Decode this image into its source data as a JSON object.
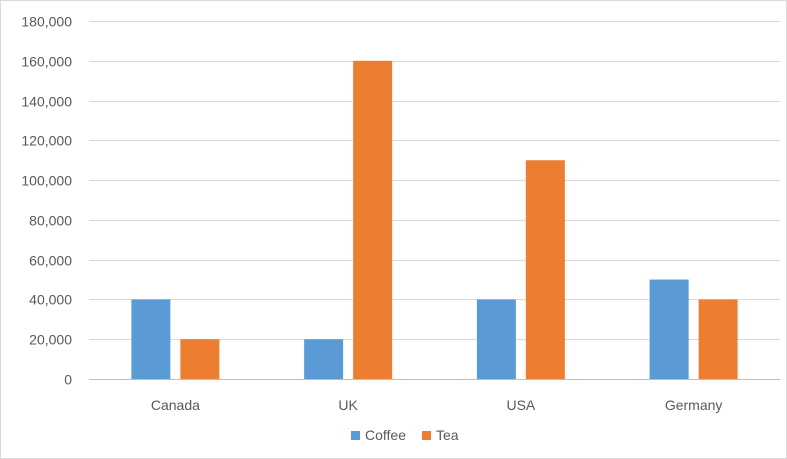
{
  "chart_data": {
    "type": "bar",
    "categories": [
      "Canada",
      "UK",
      "USA",
      "Germany"
    ],
    "series": [
      {
        "name": "Coffee",
        "values": [
          40000,
          20000,
          40000,
          50000
        ],
        "color": "#5b9bd5"
      },
      {
        "name": "Tea",
        "values": [
          20000,
          160000,
          110000,
          40000
        ],
        "color": "#ed7d31"
      }
    ],
    "y_ticks": [
      "0",
      "20,000",
      "40,000",
      "60,000",
      "80,000",
      "100,000",
      "120,000",
      "140,000",
      "160,000",
      "180,000"
    ],
    "ylim": [
      0,
      180000
    ],
    "y_step": 20000,
    "grid": true,
    "legend_position": "bottom",
    "title": "",
    "xlabel": "",
    "ylabel": "",
    "gridline_color": "#d9d9d9",
    "axis_color": "#bfbfbf"
  }
}
